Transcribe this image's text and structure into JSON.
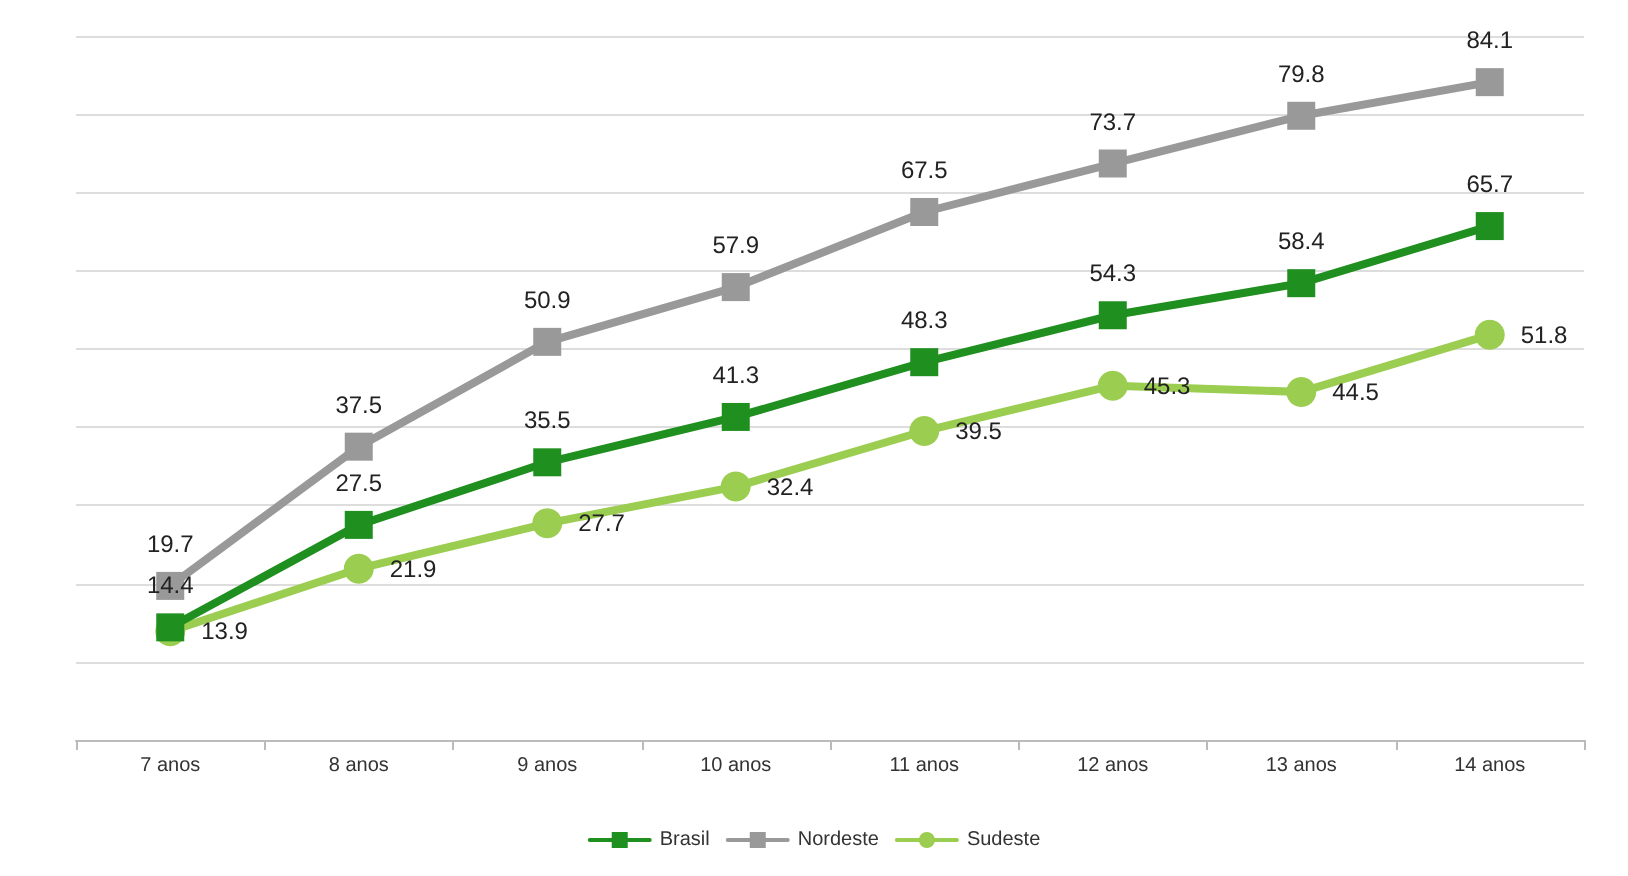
{
  "chart_data": {
    "type": "line",
    "categories": [
      "7 anos",
      "8 anos",
      "9 anos",
      "10 anos",
      "11 anos",
      "12 anos",
      "13 anos",
      "14 anos"
    ],
    "series": [
      {
        "name": "Brasil",
        "color": "#1f8f1f",
        "marker": "square",
        "values": [
          14.4,
          27.5,
          35.5,
          41.3,
          48.3,
          54.3,
          58.4,
          65.7
        ]
      },
      {
        "name": "Nordeste",
        "color": "#999999",
        "marker": "square",
        "values": [
          19.7,
          37.5,
          50.9,
          57.9,
          67.5,
          73.7,
          79.8,
          84.1
        ]
      },
      {
        "name": "Sudeste",
        "color": "#9acd50",
        "marker": "circle",
        "values": [
          13.9,
          21.9,
          27.7,
          32.4,
          39.5,
          45.3,
          44.5,
          51.8
        ]
      }
    ],
    "ylim": [
      0,
      90
    ],
    "yticks": [
      {
        "value": 0,
        "label": null
      },
      {
        "value": 10,
        "label": null
      },
      {
        "value": 20,
        "label": null
      },
      {
        "value": 30,
        "label": null
      },
      {
        "value": 40,
        "label": null
      },
      {
        "value": 50,
        "label": null
      },
      {
        "value": 60,
        "label": null
      },
      {
        "value": 70,
        "label": null
      },
      {
        "value": 80,
        "label": null
      },
      {
        "value": 90,
        "label": null
      }
    ],
    "tick_labels": "x",
    "grid": "y",
    "legend": "bottom",
    "data_labels": true,
    "line_style": "solid"
  }
}
